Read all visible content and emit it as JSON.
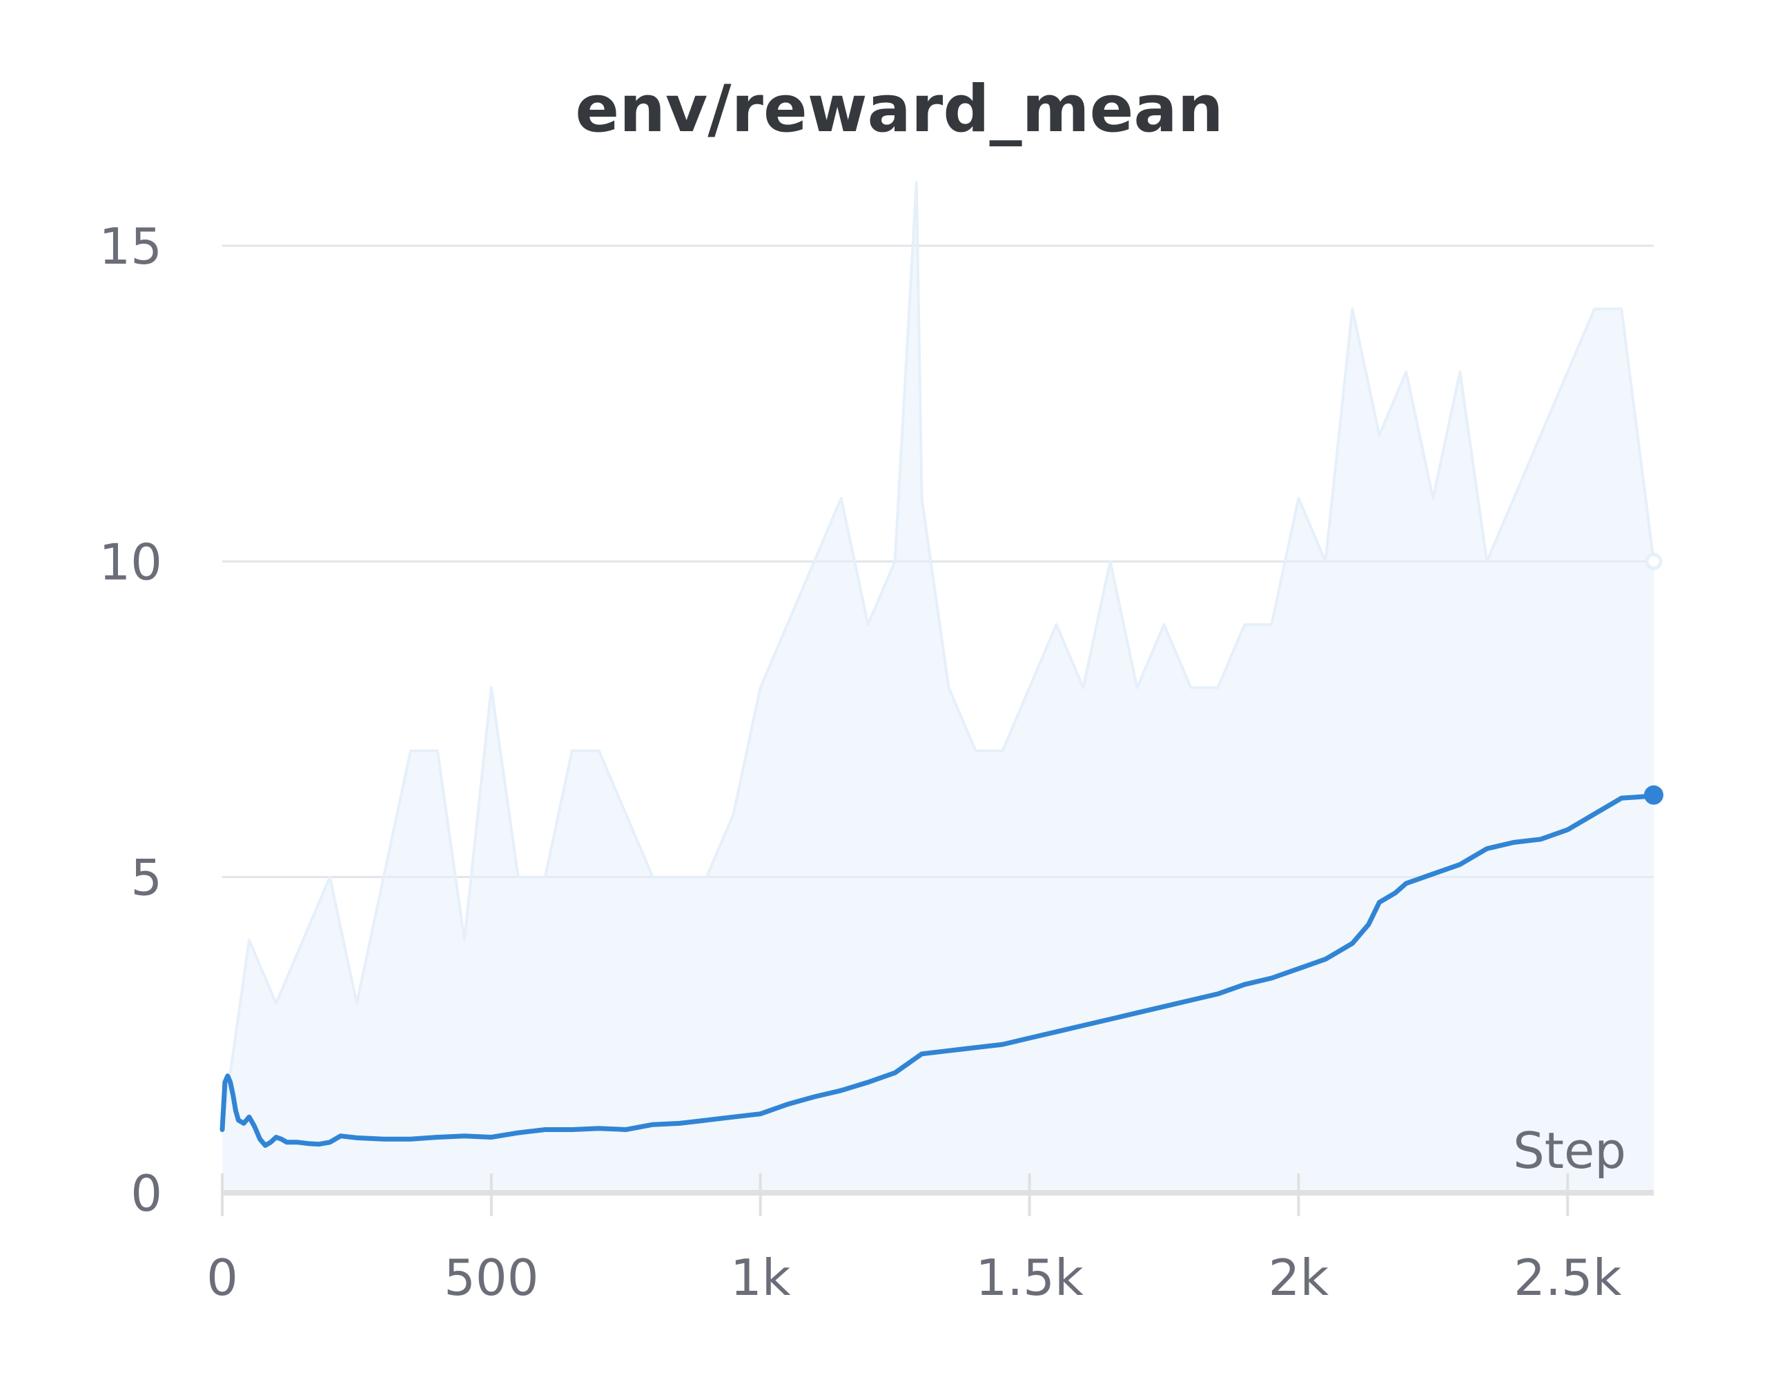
{
  "chart_data": {
    "type": "line",
    "title": "env/reward_mean",
    "xlabel": "Step",
    "ylabel": "",
    "xlim": [
      0,
      2660
    ],
    "ylim": [
      0,
      16
    ],
    "x_ticks": [
      {
        "value": 0,
        "label": "0"
      },
      {
        "value": 500,
        "label": "500"
      },
      {
        "value": 1000,
        "label": "1k"
      },
      {
        "value": 1500,
        "label": "1.5k"
      },
      {
        "value": 2000,
        "label": "2k"
      },
      {
        "value": 2500,
        "label": "2.5k"
      }
    ],
    "y_ticks": [
      {
        "value": 0,
        "label": "0"
      },
      {
        "value": 5,
        "label": "5"
      },
      {
        "value": 10,
        "label": "10"
      },
      {
        "value": 15,
        "label": "15"
      }
    ],
    "grid": "horizontal",
    "legend": "none",
    "colors": {
      "raw": "#e6f0fa",
      "smoothed": "#3184d5",
      "grid": "#e2e5ea",
      "axis": "#e0e0e0",
      "tick_text": "#6b6e78",
      "title_text": "#35393e"
    },
    "series": [
      {
        "role": "raw",
        "x": [
          0,
          50,
          100,
          150,
          200,
          250,
          300,
          350,
          400,
          450,
          500,
          550,
          600,
          650,
          700,
          750,
          800,
          850,
          900,
          950,
          1000,
          1050,
          1100,
          1150,
          1200,
          1250,
          1290,
          1300,
          1350,
          1400,
          1450,
          1500,
          1550,
          1600,
          1650,
          1700,
          1750,
          1800,
          1850,
          1900,
          1950,
          2000,
          2050,
          2100,
          2150,
          2200,
          2250,
          2300,
          2350,
          2400,
          2450,
          2500,
          2550,
          2600,
          2660
        ],
        "values": [
          1,
          4,
          3,
          4,
          5,
          3,
          5,
          7,
          7,
          4,
          8,
          5,
          5,
          7,
          7,
          6,
          5,
          5,
          5,
          6,
          8,
          9,
          10,
          11,
          9,
          10,
          16,
          11,
          8,
          7,
          7,
          8,
          9,
          8,
          10,
          8,
          9,
          8,
          8,
          9,
          9,
          11,
          10,
          14,
          12,
          13,
          11,
          13,
          10,
          11,
          12,
          13,
          14,
          14,
          10
        ]
      },
      {
        "role": "smoothed",
        "x": [
          0,
          5,
          10,
          15,
          20,
          25,
          30,
          40,
          50,
          60,
          70,
          80,
          90,
          100,
          110,
          120,
          140,
          160,
          180,
          200,
          220,
          250,
          300,
          350,
          400,
          450,
          500,
          550,
          600,
          650,
          700,
          750,
          800,
          850,
          900,
          950,
          1000,
          1050,
          1100,
          1150,
          1200,
          1250,
          1300,
          1350,
          1400,
          1450,
          1500,
          1550,
          1600,
          1650,
          1700,
          1750,
          1800,
          1850,
          1900,
          1950,
          2000,
          2050,
          2100,
          2130,
          2150,
          2180,
          2200,
          2250,
          2300,
          2350,
          2400,
          2450,
          2500,
          2550,
          2600,
          2650,
          2660
        ],
        "values": [
          1.0,
          1.75,
          1.85,
          1.75,
          1.55,
          1.3,
          1.15,
          1.1,
          1.2,
          1.05,
          0.85,
          0.75,
          0.8,
          0.88,
          0.85,
          0.8,
          0.8,
          0.78,
          0.77,
          0.8,
          0.9,
          0.87,
          0.85,
          0.85,
          0.88,
          0.9,
          0.88,
          0.95,
          1.0,
          1.0,
          1.02,
          1.0,
          1.08,
          1.1,
          1.15,
          1.2,
          1.25,
          1.4,
          1.52,
          1.62,
          1.75,
          1.9,
          2.2,
          2.25,
          2.3,
          2.35,
          2.45,
          2.55,
          2.65,
          2.75,
          2.85,
          2.95,
          3.05,
          3.15,
          3.3,
          3.4,
          3.55,
          3.7,
          3.95,
          4.25,
          4.6,
          4.75,
          4.9,
          5.05,
          5.2,
          5.45,
          5.55,
          5.6,
          5.75,
          6.0,
          6.25,
          6.28,
          6.3
        ]
      }
    ],
    "last_values": {
      "raw": 10,
      "smoothed": 6.3
    }
  }
}
